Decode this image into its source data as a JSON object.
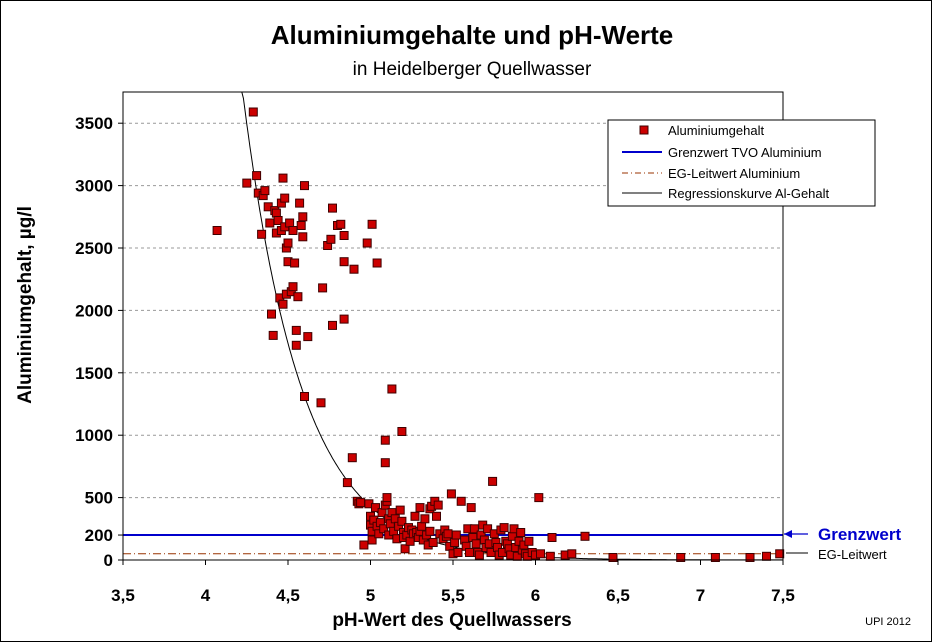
{
  "chart_data": {
    "type": "scatter",
    "title": "Aluminiumgehalte und pH-Werte",
    "subtitle": "in Heidelberger Quellwasser",
    "xlabel": "pH-Wert des Quellwassers",
    "ylabel": "Aluminiumgehalt, µg/l",
    "xlim": [
      3.5,
      7.5
    ],
    "ylim": [
      0,
      3750
    ],
    "x_ticks": [
      "3,5",
      "4",
      "4,5",
      "5",
      "5,5",
      "6",
      "6,5",
      "7",
      "7,5"
    ],
    "x_tick_values": [
      3.5,
      4.0,
      4.5,
      5.0,
      5.5,
      6.0,
      6.5,
      7.0,
      7.5
    ],
    "y_ticks": [
      "0",
      "200",
      "500",
      "1000",
      "1500",
      "2000",
      "2500",
      "3000",
      "3500"
    ],
    "y_tick_values": [
      0,
      200,
      500,
      1000,
      1500,
      2000,
      2500,
      3000,
      3500
    ],
    "y_gridlines": [
      500,
      1000,
      1500,
      2000,
      2500,
      3000,
      3500
    ],
    "grid": true,
    "legend_position": "top-right",
    "legend": [
      "Aluminiumgehalt",
      "Grenzwert TVO Aluminium",
      "EG-Leitwert Aluminium",
      "Regressionskurve Al-Gehalt"
    ],
    "series": [
      {
        "name": "Aluminiumgehalt",
        "marker": "square",
        "color": "#cc0000",
        "points": [
          [
            4.07,
            2640
          ],
          [
            4.25,
            3020
          ],
          [
            4.29,
            3590
          ],
          [
            4.31,
            3080
          ],
          [
            4.32,
            2940
          ],
          [
            4.34,
            2610
          ],
          [
            4.35,
            2920
          ],
          [
            4.36,
            2960
          ],
          [
            4.38,
            2830
          ],
          [
            4.39,
            2700
          ],
          [
            4.4,
            1970
          ],
          [
            4.41,
            1800
          ],
          [
            4.42,
            2800
          ],
          [
            4.43,
            2620
          ],
          [
            4.43,
            2780
          ],
          [
            4.44,
            2720
          ],
          [
            4.45,
            2100
          ],
          [
            4.46,
            2640
          ],
          [
            4.46,
            2860
          ],
          [
            4.47,
            3060
          ],
          [
            4.47,
            2050
          ],
          [
            4.48,
            2670
          ],
          [
            4.48,
            2900
          ],
          [
            4.49,
            2500
          ],
          [
            4.49,
            2130
          ],
          [
            4.5,
            2540
          ],
          [
            4.5,
            2390
          ],
          [
            4.51,
            2700
          ],
          [
            4.52,
            2150
          ],
          [
            4.53,
            2640
          ],
          [
            4.53,
            2190
          ],
          [
            4.54,
            2380
          ],
          [
            4.55,
            1720
          ],
          [
            4.55,
            1840
          ],
          [
            4.56,
            2110
          ],
          [
            4.57,
            2860
          ],
          [
            4.58,
            2680
          ],
          [
            4.59,
            2750
          ],
          [
            4.59,
            2590
          ],
          [
            4.6,
            3000
          ],
          [
            4.6,
            1310
          ],
          [
            4.62,
            1790
          ],
          [
            4.7,
            1260
          ],
          [
            4.71,
            2180
          ],
          [
            4.74,
            2520
          ],
          [
            4.76,
            2570
          ],
          [
            4.77,
            2820
          ],
          [
            4.77,
            1880
          ],
          [
            4.8,
            2680
          ],
          [
            4.82,
            2690
          ],
          [
            4.84,
            1930
          ],
          [
            4.84,
            2600
          ],
          [
            4.84,
            2390
          ],
          [
            4.86,
            620
          ],
          [
            4.89,
            820
          ],
          [
            4.9,
            2330
          ],
          [
            4.92,
            470
          ],
          [
            4.93,
            450
          ],
          [
            4.94,
            460
          ],
          [
            4.96,
            120
          ],
          [
            4.98,
            2540
          ],
          [
            4.99,
            450
          ],
          [
            5.0,
            350
          ],
          [
            5.0,
            280
          ],
          [
            5.01,
            230
          ],
          [
            5.01,
            2690
          ],
          [
            5.01,
            160
          ],
          [
            5.02,
            320
          ],
          [
            5.03,
            420
          ],
          [
            5.04,
            270
          ],
          [
            5.04,
            2380
          ],
          [
            5.05,
            210
          ],
          [
            5.06,
            300
          ],
          [
            5.07,
            380
          ],
          [
            5.08,
            250
          ],
          [
            5.09,
            440
          ],
          [
            5.09,
            960
          ],
          [
            5.09,
            780
          ],
          [
            5.1,
            470
          ],
          [
            5.1,
            500
          ],
          [
            5.11,
            330
          ],
          [
            5.11,
            200
          ],
          [
            5.12,
            290
          ],
          [
            5.13,
            380
          ],
          [
            5.13,
            1370
          ],
          [
            5.14,
            230
          ],
          [
            5.15,
            330
          ],
          [
            5.16,
            170
          ],
          [
            5.17,
            270
          ],
          [
            5.18,
            400
          ],
          [
            5.19,
            1030
          ],
          [
            5.19,
            310
          ],
          [
            5.2,
            220
          ],
          [
            5.2,
            180
          ],
          [
            5.21,
            90
          ],
          [
            5.22,
            200
          ],
          [
            5.23,
            260
          ],
          [
            5.24,
            150
          ],
          [
            5.25,
            240
          ],
          [
            5.26,
            210
          ],
          [
            5.27,
            350
          ],
          [
            5.28,
            220
          ],
          [
            5.29,
            180
          ],
          [
            5.3,
            420
          ],
          [
            5.3,
            230
          ],
          [
            5.31,
            270
          ],
          [
            5.32,
            160
          ],
          [
            5.33,
            330
          ],
          [
            5.34,
            200
          ],
          [
            5.35,
            120
          ],
          [
            5.36,
            410
          ],
          [
            5.36,
            230
          ],
          [
            5.37,
            430
          ],
          [
            5.38,
            140
          ],
          [
            5.39,
            470
          ],
          [
            5.4,
            350
          ],
          [
            5.41,
            440
          ],
          [
            5.42,
            210
          ],
          [
            5.44,
            170
          ],
          [
            5.45,
            240
          ],
          [
            5.46,
            190
          ],
          [
            5.47,
            210
          ],
          [
            5.48,
            110
          ],
          [
            5.49,
            530
          ],
          [
            5.5,
            50
          ],
          [
            5.51,
            140
          ],
          [
            5.52,
            200
          ],
          [
            5.53,
            60
          ],
          [
            5.55,
            470
          ],
          [
            5.57,
            160
          ],
          [
            5.58,
            110
          ],
          [
            5.59,
            250
          ],
          [
            5.6,
            60
          ],
          [
            5.61,
            420
          ],
          [
            5.62,
            180
          ],
          [
            5.63,
            250
          ],
          [
            5.64,
            130
          ],
          [
            5.65,
            60
          ],
          [
            5.66,
            40
          ],
          [
            5.67,
            200
          ],
          [
            5.68,
            280
          ],
          [
            5.69,
            160
          ],
          [
            5.7,
            100
          ],
          [
            5.71,
            250
          ],
          [
            5.72,
            130
          ],
          [
            5.73,
            60
          ],
          [
            5.74,
            630
          ],
          [
            5.75,
            210
          ],
          [
            5.76,
            140
          ],
          [
            5.77,
            100
          ],
          [
            5.78,
            40
          ],
          [
            5.79,
            240
          ],
          [
            5.8,
            60
          ],
          [
            5.81,
            260
          ],
          [
            5.82,
            150
          ],
          [
            5.83,
            130
          ],
          [
            5.84,
            90
          ],
          [
            5.85,
            40
          ],
          [
            5.86,
            190
          ],
          [
            5.87,
            250
          ],
          [
            5.88,
            100
          ],
          [
            5.89,
            30
          ],
          [
            5.9,
            150
          ],
          [
            5.91,
            220
          ],
          [
            5.92,
            80
          ],
          [
            5.93,
            120
          ],
          [
            5.94,
            50
          ],
          [
            5.95,
            30
          ],
          [
            5.96,
            150
          ],
          [
            5.98,
            60
          ],
          [
            6.0,
            40
          ],
          [
            6.02,
            500
          ],
          [
            6.03,
            50
          ],
          [
            6.09,
            30
          ],
          [
            6.1,
            180
          ],
          [
            6.18,
            40
          ],
          [
            6.22,
            50
          ],
          [
            6.3,
            190
          ],
          [
            6.47,
            20
          ],
          [
            6.88,
            20
          ],
          [
            7.09,
            20
          ],
          [
            7.3,
            20
          ],
          [
            7.4,
            30
          ],
          [
            7.48,
            50
          ]
        ]
      },
      {
        "name": "Grenzwert TVO Aluminium",
        "type": "hline",
        "value": 200,
        "color": "#0000cc"
      },
      {
        "name": "EG-Leitwert Aluminium",
        "type": "hline",
        "value": 50,
        "color": "#993300"
      },
      {
        "name": "Regressionskurve Al-Gehalt",
        "type": "exponential",
        "formula": "y = 3700 * exp(-2.8 * (x - 4.23))",
        "color": "#000000"
      }
    ],
    "annotations": {
      "grenzwert_label": "Grenzwert",
      "eg_leitwert_label": "EG-Leitwert",
      "credit": "UPI 2012"
    }
  }
}
